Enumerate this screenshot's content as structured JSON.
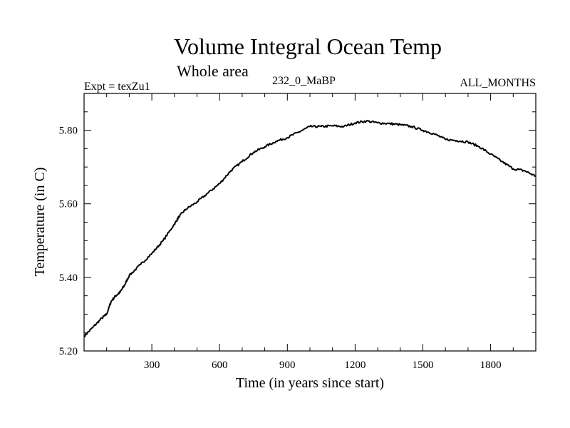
{
  "chart_data": {
    "type": "line",
    "title": "Volume Integral Ocean Temp",
    "subtitle": "Whole area",
    "experiment_label": "Expt = texZu1",
    "run_label": "232_0_MaBP",
    "period_label": "ALL_MONTHS",
    "xlabel": "Time (in years since start)",
    "ylabel": "Temperature (in C)",
    "xlim": [
      0,
      2000
    ],
    "ylim": [
      5.2,
      5.9
    ],
    "xticks": [
      300,
      600,
      900,
      1200,
      1500,
      1800
    ],
    "xtick_labels": [
      "300",
      "600",
      "900",
      "1200",
      "1500",
      "1800"
    ],
    "yticks": [
      5.2,
      5.4,
      5.6,
      5.8
    ],
    "ytick_labels": [
      "5.20",
      "5.40",
      "5.60",
      "5.80"
    ],
    "grid": false,
    "series": [
      {
        "name": "Volume integral ocean temperature",
        "color": "#000000",
        "x": [
          0,
          40,
          80,
          100,
          120,
          140,
          160,
          180,
          200,
          250,
          300,
          350,
          400,
          420,
          450,
          500,
          550,
          600,
          650,
          700,
          750,
          800,
          850,
          900,
          950,
          1000,
          1050,
          1100,
          1150,
          1200,
          1250,
          1300,
          1350,
          1400,
          1450,
          1500,
          1550,
          1600,
          1650,
          1700,
          1750,
          1800,
          1850,
          1900,
          1950,
          2000
        ],
        "y": [
          5.24,
          5.265,
          5.29,
          5.3,
          5.335,
          5.35,
          5.36,
          5.38,
          5.405,
          5.435,
          5.465,
          5.5,
          5.545,
          5.565,
          5.585,
          5.605,
          5.63,
          5.655,
          5.69,
          5.715,
          5.74,
          5.755,
          5.77,
          5.78,
          5.795,
          5.81,
          5.81,
          5.812,
          5.81,
          5.82,
          5.825,
          5.82,
          5.818,
          5.815,
          5.81,
          5.8,
          5.79,
          5.775,
          5.772,
          5.768,
          5.755,
          5.735,
          5.715,
          5.695,
          5.69,
          5.675
        ]
      }
    ]
  }
}
